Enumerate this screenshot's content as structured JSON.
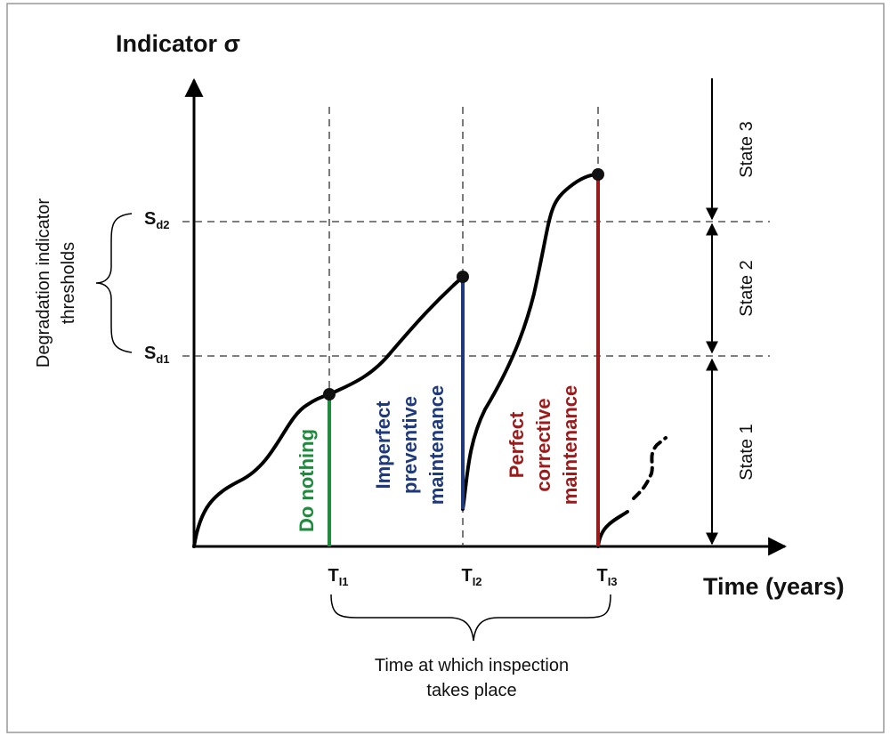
{
  "y_axis_label": "Indicator σ",
  "x_axis_label": "Time (years)",
  "thresholds": [
    {
      "base": "S",
      "sub": "d2"
    },
    {
      "base": "S",
      "sub": "d1"
    }
  ],
  "thresholds_label": [
    "Degradation indicator",
    "thresholds"
  ],
  "inspection_times": [
    {
      "base": "T",
      "sub": "I1"
    },
    {
      "base": "T",
      "sub": "I2"
    },
    {
      "base": "T",
      "sub": "I3"
    }
  ],
  "inspection_label": [
    "Time at which inspection",
    "takes place"
  ],
  "states": [
    "State 3",
    "State 2",
    "State 1"
  ],
  "actions": [
    {
      "lines": [
        "Do nothing"
      ],
      "color": "#1e8a3c"
    },
    {
      "lines": [
        "Imperfect",
        "preventive",
        "maintenance"
      ],
      "color": "#1f3a7a"
    },
    {
      "lines": [
        "Perfect",
        "corrective",
        "maintenance"
      ],
      "color": "#9b1b1b"
    }
  ]
}
